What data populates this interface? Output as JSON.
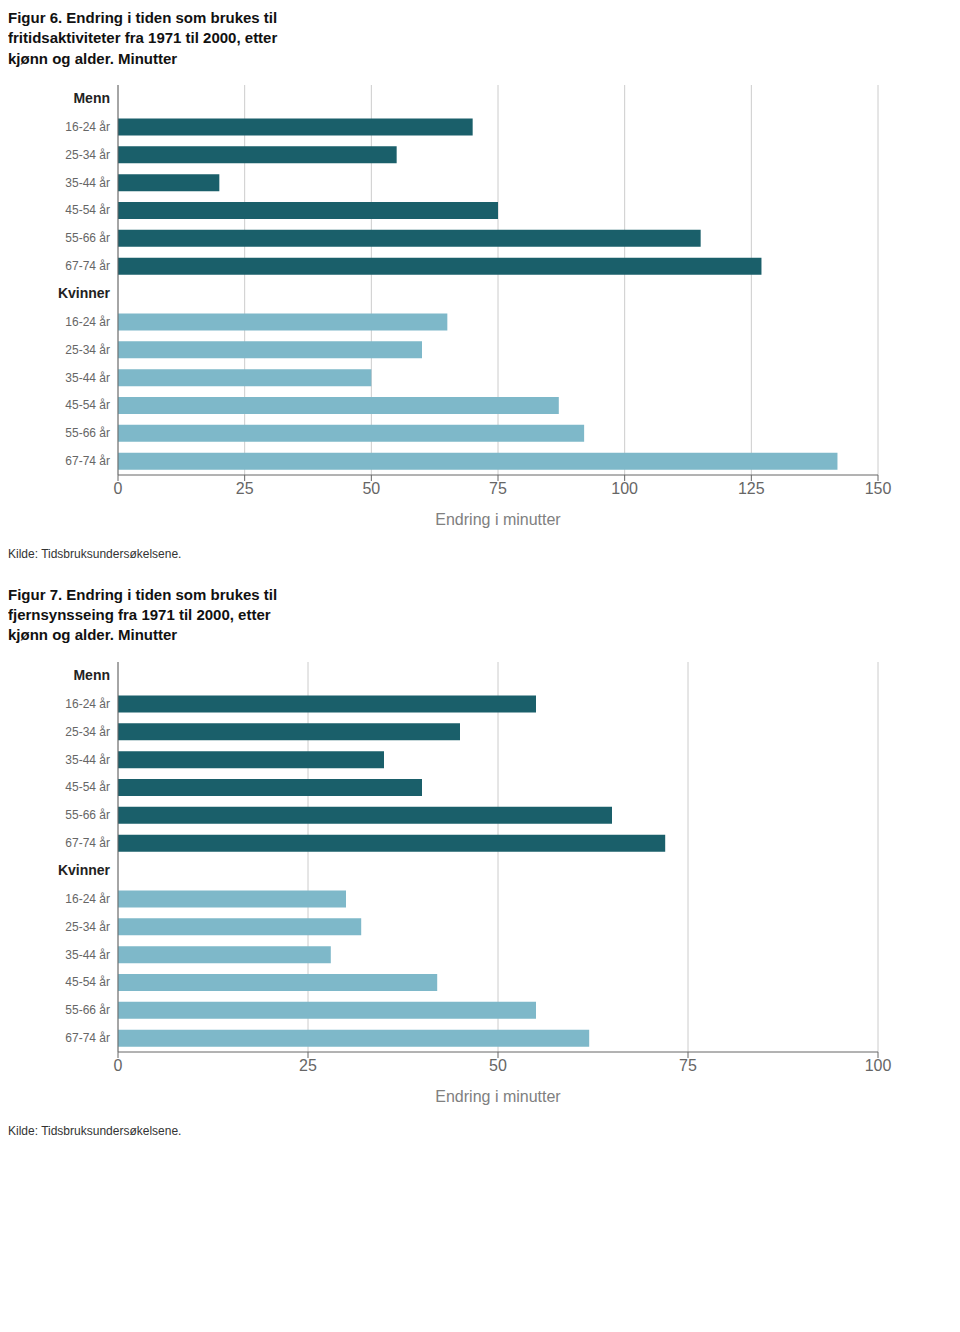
{
  "chart_data": [
    {
      "type": "bar",
      "orientation": "horizontal",
      "title": "Figur 6. Endring i tiden som brukes til\nfritidsaktiviteter fra 1971 til 2000, etter\nkjønn og alder. Minutter",
      "categories": [
        "16-24 år",
        "25-34 år",
        "35-44 år",
        "45-54 år",
        "55-66 år",
        "67-74 år"
      ],
      "series": [
        {
          "name": "Menn",
          "color": "#1a5f6a",
          "values": [
            70,
            55,
            20,
            75,
            115,
            127
          ]
        },
        {
          "name": "Kvinner",
          "color": "#7eb8c9",
          "values": [
            65,
            60,
            50,
            87,
            92,
            142
          ]
        }
      ],
      "xlabel": "Endring i minutter",
      "xlim": [
        0,
        150
      ],
      "xticks": [
        0,
        25,
        50,
        75,
        100,
        125,
        150
      ],
      "grid": true,
      "annotations": [
        "Kilde: Tidsbruksundersøkelsene."
      ]
    },
    {
      "type": "bar",
      "orientation": "horizontal",
      "title": "Figur 7. Endring i tiden som brukes til\nfjernsynsseing fra 1971 til 2000, etter\nkjønn og alder. Minutter",
      "categories": [
        "16-24 år",
        "25-34 år",
        "35-44 år",
        "45-54 år",
        "55-66 år",
        "67-74 år"
      ],
      "series": [
        {
          "name": "Menn",
          "color": "#1a5f6a",
          "values": [
            55,
            45,
            35,
            40,
            65,
            72
          ]
        },
        {
          "name": "Kvinner",
          "color": "#7eb8c9",
          "values": [
            30,
            32,
            28,
            42,
            55,
            62
          ]
        }
      ],
      "xlabel": "Endring i minutter",
      "xlim": [
        0,
        100
      ],
      "xticks": [
        0,
        25,
        50,
        75,
        100
      ],
      "grid": true,
      "annotations": [
        "Kilde: Tidsbruksundersøkelsene."
      ]
    }
  ]
}
